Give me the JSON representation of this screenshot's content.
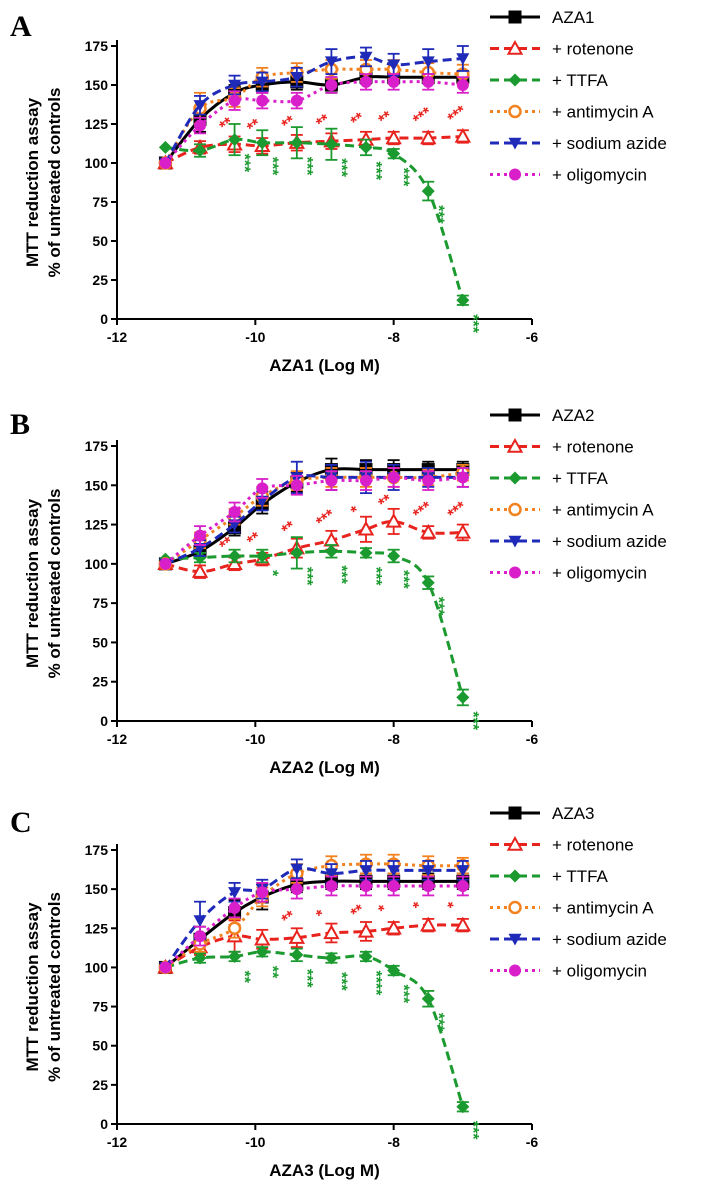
{
  "chart_data": [
    {
      "type": "line",
      "panel_label": "A",
      "title": "",
      "xlabel": "AZA1 (Log M)",
      "ylabel": [
        "MTT reduction assay",
        "% of untreated controls"
      ],
      "xlim": [
        -12,
        -6
      ],
      "ylim": [
        0,
        175
      ],
      "xticks": [
        -12,
        -10,
        -8,
        -6
      ],
      "yticks": [
        0,
        25,
        50,
        75,
        100,
        125,
        150,
        175
      ],
      "x": [
        -11.3,
        -10.8,
        -10.3,
        -9.9,
        -9.4,
        -8.9,
        -8.4,
        -8.0,
        -7.5,
        -7.0
      ],
      "series": [
        {
          "name": "AZA1",
          "color": "#000000",
          "marker": "square",
          "dash": "solid",
          "values": [
            100,
            128,
            145,
            150,
            152,
            150,
            155,
            155,
            155,
            155
          ],
          "errors": [
            0,
            8,
            5,
            5,
            5,
            5,
            4,
            4,
            4,
            4
          ]
        },
        {
          "name": "+ rotenone",
          "color": "#e8231e",
          "marker": "triangle-open",
          "dash": "dash",
          "values": [
            100,
            110,
            112,
            111,
            113,
            114,
            115,
            116,
            116,
            117
          ],
          "errors": [
            0,
            4,
            5,
            5,
            5,
            5,
            5,
            4,
            4,
            4
          ]
        },
        {
          "name": "+ TTFA",
          "color": "#1b9a2f",
          "marker": "diamond",
          "dash": "dash",
          "values": [
            110,
            108,
            115,
            113,
            113,
            112,
            110,
            106,
            82,
            12
          ],
          "errors": [
            0,
            4,
            10,
            8,
            10,
            10,
            5,
            3,
            6,
            3
          ]
        },
        {
          "name": "+ antimycin A",
          "color": "#f28220",
          "marker": "circle-open",
          "dash": "dot",
          "values": [
            100,
            135,
            142,
            155,
            158,
            160,
            160,
            160,
            158,
            157
          ],
          "errors": [
            0,
            10,
            6,
            6,
            6,
            6,
            6,
            6,
            6,
            6
          ]
        },
        {
          "name": "+ sodium azide",
          "color": "#1f2ab8",
          "marker": "triangle-down",
          "dash": "dash",
          "values": [
            100,
            137,
            150,
            152,
            155,
            165,
            168,
            163,
            165,
            167
          ],
          "errors": [
            0,
            6,
            6,
            6,
            6,
            8,
            6,
            7,
            8,
            8
          ]
        },
        {
          "name": "+ oligomycin",
          "color": "#d91fc9",
          "marker": "circle",
          "dash": "dot",
          "values": [
            100,
            124,
            140,
            140,
            140,
            150,
            152,
            152,
            152,
            150
          ],
          "errors": [
            0,
            5,
            6,
            5,
            5,
            5,
            5,
            5,
            5,
            5
          ]
        }
      ],
      "annotations": [
        {
          "x": -10.3,
          "text": "***",
          "series": "+ TTFA"
        },
        {
          "x": -9.9,
          "text": "***",
          "series": "+ TTFA"
        },
        {
          "x": -9.4,
          "text": "***",
          "series": "+ TTFA"
        },
        {
          "x": -8.9,
          "text": "***",
          "series": "+ TTFA"
        },
        {
          "x": -8.4,
          "text": "***",
          "series": "+ TTFA"
        },
        {
          "x": -8.0,
          "text": "***",
          "series": "+ TTFA"
        },
        {
          "x": -7.5,
          "text": "***",
          "series": "+ TTFA"
        },
        {
          "x": -7.0,
          "text": "***",
          "series": "+ TTFA"
        },
        {
          "x": -10.3,
          "text": "**",
          "series": "+ rotenone"
        },
        {
          "x": -9.9,
          "text": "**",
          "series": "+ rotenone"
        },
        {
          "x": -9.4,
          "text": "**",
          "series": "+ rotenone"
        },
        {
          "x": -8.9,
          "text": "**",
          "series": "+ rotenone"
        },
        {
          "x": -8.4,
          "text": "**",
          "series": "+ rotenone"
        },
        {
          "x": -8.0,
          "text": "**",
          "series": "+ rotenone"
        },
        {
          "x": -7.5,
          "text": "***",
          "series": "+ rotenone"
        },
        {
          "x": -7.0,
          "text": "***",
          "series": "+ rotenone"
        }
      ]
    },
    {
      "type": "line",
      "panel_label": "B",
      "title": "",
      "xlabel": "AZA2 (Log M)",
      "ylabel": [
        "MTT reduction assay",
        "% of untreated controls"
      ],
      "xlim": [
        -12,
        -6
      ],
      "ylim": [
        0,
        175
      ],
      "xticks": [
        -12,
        -10,
        -8,
        -6
      ],
      "yticks": [
        0,
        25,
        50,
        75,
        100,
        125,
        150,
        175
      ],
      "x": [
        -11.3,
        -10.8,
        -10.3,
        -9.9,
        -9.4,
        -8.9,
        -8.4,
        -8.0,
        -7.5,
        -7.0
      ],
      "series": [
        {
          "name": "AZA2",
          "color": "#000000",
          "marker": "square",
          "dash": "solid",
          "values": [
            100,
            108,
            123,
            138,
            152,
            160,
            160,
            160,
            160,
            160
          ],
          "errors": [
            0,
            4,
            5,
            6,
            6,
            7,
            6,
            6,
            5,
            5
          ]
        },
        {
          "name": "+ rotenone",
          "color": "#e8231e",
          "marker": "triangle-open",
          "dash": "dash",
          "values": [
            100,
            95,
            100,
            103,
            110,
            115,
            122,
            127,
            120,
            120
          ],
          "errors": [
            0,
            4,
            4,
            4,
            6,
            6,
            8,
            8,
            4,
            5
          ]
        },
        {
          "name": "+ TTFA",
          "color": "#1b9a2f",
          "marker": "diamond",
          "dash": "dash",
          "values": [
            103,
            104,
            105,
            105,
            107,
            108,
            107,
            105,
            88,
            15
          ],
          "errors": [
            0,
            3,
            4,
            4,
            10,
            4,
            3,
            4,
            4,
            5
          ]
        },
        {
          "name": "+ antimycin A",
          "color": "#f28220",
          "marker": "circle-open",
          "dash": "dot",
          "values": [
            100,
            115,
            130,
            143,
            153,
            155,
            155,
            155,
            155,
            158
          ],
          "errors": [
            0,
            5,
            5,
            6,
            6,
            6,
            6,
            6,
            5,
            5
          ]
        },
        {
          "name": "+ sodium azide",
          "color": "#1f2ab8",
          "marker": "triangle-down",
          "dash": "dash",
          "values": [
            100,
            110,
            125,
            140,
            155,
            155,
            155,
            155,
            155,
            155
          ],
          "errors": [
            0,
            5,
            5,
            6,
            10,
            8,
            10,
            8,
            6,
            6
          ]
        },
        {
          "name": "+ oligomycin",
          "color": "#d91fc9",
          "marker": "circle",
          "dash": "dot",
          "values": [
            100,
            118,
            133,
            148,
            150,
            153,
            153,
            155,
            153,
            155
          ],
          "errors": [
            0,
            6,
            6,
            6,
            6,
            6,
            6,
            6,
            6,
            6
          ]
        }
      ],
      "annotations": [
        {
          "x": -9.9,
          "text": "*",
          "series": "+ TTFA"
        },
        {
          "x": -9.4,
          "text": "***",
          "series": "+ TTFA"
        },
        {
          "x": -8.9,
          "text": "***",
          "series": "+ TTFA"
        },
        {
          "x": -8.4,
          "text": "***",
          "series": "+ TTFA"
        },
        {
          "x": -8.0,
          "text": "***",
          "series": "+ TTFA"
        },
        {
          "x": -7.5,
          "text": "***",
          "series": "+ TTFA"
        },
        {
          "x": -7.0,
          "text": "***",
          "series": "+ TTFA"
        },
        {
          "x": -10.3,
          "text": "**",
          "series": "+ rotenone"
        },
        {
          "x": -9.9,
          "text": "**",
          "series": "+ rotenone"
        },
        {
          "x": -9.4,
          "text": "**",
          "series": "+ rotenone"
        },
        {
          "x": -8.9,
          "text": "***",
          "series": "+ rotenone"
        },
        {
          "x": -8.4,
          "text": "*",
          "series": "+ rotenone"
        },
        {
          "x": -8.0,
          "text": "**",
          "series": "+ rotenone"
        },
        {
          "x": -7.5,
          "text": "***",
          "series": "+ rotenone"
        },
        {
          "x": -7.0,
          "text": "***",
          "series": "+ rotenone"
        }
      ]
    },
    {
      "type": "line",
      "panel_label": "C",
      "title": "",
      "xlabel": "AZA3 (Log M)",
      "ylabel": [
        "MTT reduction assay",
        "% of untreated controls"
      ],
      "xlim": [
        -12,
        -6
      ],
      "ylim": [
        0,
        175
      ],
      "xticks": [
        -12,
        -10,
        -8,
        -6
      ],
      "yticks": [
        0,
        25,
        50,
        75,
        100,
        125,
        150,
        175
      ],
      "x": [
        -11.3,
        -10.8,
        -10.3,
        -9.9,
        -9.4,
        -8.9,
        -8.4,
        -8.0,
        -7.5,
        -7.0
      ],
      "series": [
        {
          "name": "AZA3",
          "color": "#000000",
          "marker": "square",
          "dash": "solid",
          "values": [
            100,
            118,
            135,
            145,
            153,
            155,
            155,
            155,
            155,
            155
          ],
          "errors": [
            0,
            8,
            8,
            8,
            5,
            5,
            5,
            5,
            5,
            5
          ]
        },
        {
          "name": "+ rotenone",
          "color": "#e8231e",
          "marker": "triangle-open",
          "dash": "dash",
          "values": [
            100,
            113,
            120,
            118,
            119,
            122,
            123,
            125,
            127,
            127
          ],
          "errors": [
            0,
            5,
            10,
            6,
            6,
            6,
            6,
            4,
            4,
            4
          ]
        },
        {
          "name": "+ TTFA",
          "color": "#1b9a2f",
          "marker": "diamond",
          "dash": "dash",
          "values": [
            100,
            106,
            107,
            110,
            108,
            106,
            107,
            98,
            80,
            11
          ],
          "errors": [
            0,
            3,
            3,
            3,
            4,
            3,
            3,
            3,
            5,
            3
          ]
        },
        {
          "name": "+ antimycin A",
          "color": "#f28220",
          "marker": "circle-open",
          "dash": "dot",
          "values": [
            100,
            115,
            125,
            145,
            160,
            165,
            166,
            166,
            165,
            165
          ],
          "errors": [
            0,
            5,
            6,
            6,
            6,
            6,
            6,
            6,
            6,
            5
          ]
        },
        {
          "name": "+ sodium azide",
          "color": "#1f2ab8",
          "marker": "triangle-down",
          "dash": "dash",
          "values": [
            100,
            130,
            148,
            150,
            163,
            160,
            162,
            162,
            162,
            162
          ],
          "errors": [
            0,
            12,
            6,
            6,
            6,
            6,
            6,
            6,
            6,
            6
          ]
        },
        {
          "name": "+ oligomycin",
          "color": "#d91fc9",
          "marker": "circle",
          "dash": "dot",
          "values": [
            100,
            120,
            138,
            148,
            150,
            152,
            152,
            152,
            152,
            152
          ],
          "errors": [
            0,
            6,
            6,
            6,
            6,
            6,
            6,
            6,
            6,
            6
          ]
        }
      ],
      "annotations": [
        {
          "x": -10.3,
          "text": "**",
          "series": "+ TTFA"
        },
        {
          "x": -9.9,
          "text": "**",
          "series": "+ TTFA"
        },
        {
          "x": -9.4,
          "text": "***",
          "series": "+ TTFA"
        },
        {
          "x": -8.9,
          "text": "***",
          "series": "+ TTFA"
        },
        {
          "x": -8.4,
          "text": "****",
          "series": "+ TTFA"
        },
        {
          "x": -8.0,
          "text": "***",
          "series": "+ TTFA"
        },
        {
          "x": -7.5,
          "text": "***",
          "series": "+ TTFA"
        },
        {
          "x": -7.0,
          "text": "***",
          "series": "+ TTFA"
        },
        {
          "x": -9.4,
          "text": "**",
          "series": "+ rotenone"
        },
        {
          "x": -8.9,
          "text": "*",
          "series": "+ rotenone"
        },
        {
          "x": -8.4,
          "text": "**",
          "series": "+ rotenone"
        },
        {
          "x": -8.0,
          "text": "*",
          "series": "+ rotenone"
        },
        {
          "x": -7.5,
          "text": "*",
          "series": "+ rotenone"
        },
        {
          "x": -7.0,
          "text": "*",
          "series": "+ rotenone"
        }
      ]
    }
  ]
}
